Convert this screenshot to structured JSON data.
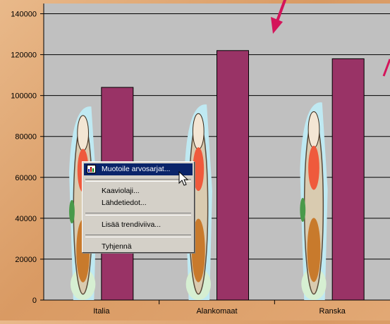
{
  "chart_data": {
    "type": "bar",
    "categories": [
      "Italia",
      "Alankomaat",
      "Ranska"
    ],
    "series": [
      {
        "values": [
          96000,
          97000,
          98000
        ],
        "color": "#bfe9f2",
        "fill": "picture"
      },
      {
        "values": [
          104000,
          122000,
          118000
        ],
        "color": "#993366"
      }
    ],
    "ylim": [
      0,
      145000
    ],
    "yticks": [
      "0",
      "20000",
      "40000",
      "60000",
      "80000",
      "100000",
      "120000",
      "140000"
    ],
    "grid": true,
    "plot_background": "#c0c0c0"
  },
  "context_menu": {
    "items": [
      {
        "label": "Muotoile arvosarjat...",
        "selected": true,
        "icon": "format-series-icon"
      },
      {
        "label": "Kaaviolaji...",
        "separator_before": true
      },
      {
        "label": "Lähdetiedot..."
      },
      {
        "label": "Lisää trendiviiva...",
        "separator_before": true
      },
      {
        "label": "Tyhjennä",
        "separator_before": true
      }
    ]
  },
  "annotations": {
    "arrow_color": "#d4145a"
  }
}
